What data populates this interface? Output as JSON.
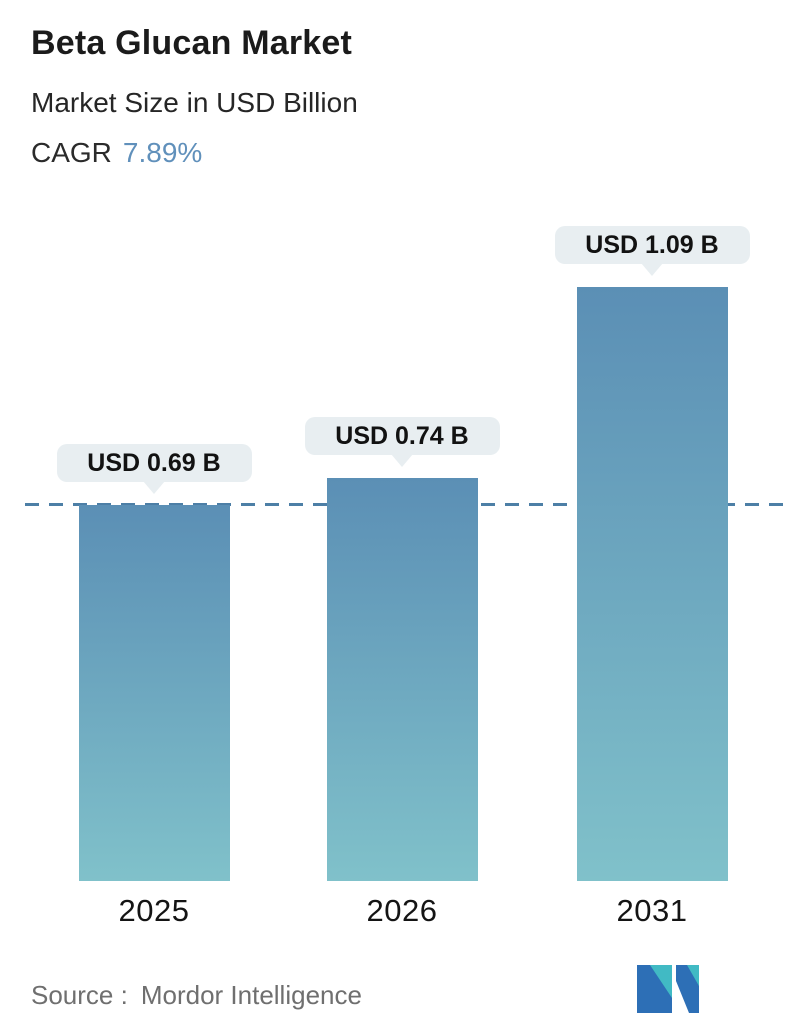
{
  "header": {
    "title": "Beta Glucan Market",
    "subtitle": "Market Size in USD Billion",
    "cagr_label": "CAGR",
    "cagr_value": "7.89%"
  },
  "chart_data": {
    "type": "bar",
    "title": "Beta Glucan Market",
    "subtitle": "Market Size in USD Billion",
    "unit": "USD Billion",
    "categories": [
      "2025",
      "2026",
      "2031"
    ],
    "values": [
      0.69,
      0.74,
      1.09
    ],
    "value_labels": [
      "USD 0.69 B",
      "USD 0.74 B",
      "USD 1.09 B"
    ],
    "cagr": "7.89%",
    "baseline": {
      "value": 0.69,
      "style": "dashed"
    },
    "ylim": [
      0,
      1.2
    ],
    "grid": false,
    "legend": false,
    "xlabel": "",
    "ylabel": ""
  },
  "footer": {
    "source_label": "Source :",
    "source_value": "Mordor Intelligence",
    "logo": "mordor-intelligence-logo"
  },
  "colors": {
    "accent": "#6090bb",
    "dashed_line": "#4d7fa6",
    "bar_gradient_top": "#5b8fb5",
    "bar_gradient_bottom": "#80c1ca",
    "pill_bg": "#e8eef1",
    "logo_teal": "#41bac4",
    "logo_blue": "#2d6fb6"
  }
}
